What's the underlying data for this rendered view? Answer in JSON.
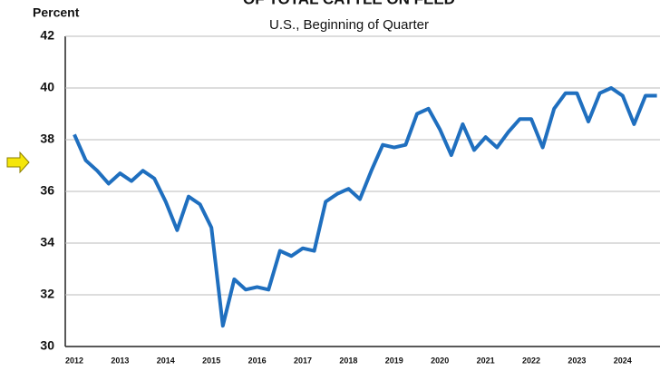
{
  "chart_data": {
    "type": "line",
    "title": "OF TOTAL CATTLE ON FEED",
    "subtitle": "U.S., Beginning of Quarter",
    "y_label": "Percent",
    "categories": [
      "2012",
      null,
      null,
      null,
      "2013",
      null,
      null,
      null,
      "2014",
      null,
      null,
      null,
      "2015",
      null,
      null,
      null,
      "2016",
      null,
      null,
      null,
      "2017",
      null,
      null,
      null,
      "2018",
      null,
      null,
      null,
      "2019",
      null,
      null,
      null,
      "2020",
      null,
      null,
      null,
      "2021",
      null,
      null,
      null,
      "2022",
      null,
      null,
      null,
      "2023",
      null,
      null,
      null,
      "2024",
      null,
      null,
      null
    ],
    "series": [
      {
        "color": "#1f6fbf",
        "values": [
          38.2,
          37.2,
          36.8,
          36.3,
          36.7,
          36.4,
          36.8,
          36.5,
          35.6,
          34.5,
          35.8,
          35.5,
          34.6,
          30.8,
          32.6,
          32.2,
          32.3,
          32.2,
          33.7,
          33.5,
          33.8,
          33.7,
          35.6,
          35.9,
          36.1,
          35.7,
          36.8,
          37.8,
          37.7,
          37.8,
          39.0,
          39.2,
          38.4,
          37.4,
          38.6,
          37.6,
          38.1,
          37.7,
          38.3,
          38.8,
          38.8,
          37.7,
          39.2,
          39.8,
          39.8,
          38.7,
          39.8,
          40.0,
          39.7,
          38.6,
          39.7,
          39.7
        ]
      }
    ],
    "ylim": [
      30,
      42
    ],
    "yticks": [
      30,
      32,
      34,
      36,
      38,
      40,
      42
    ],
    "grid": true
  }
}
